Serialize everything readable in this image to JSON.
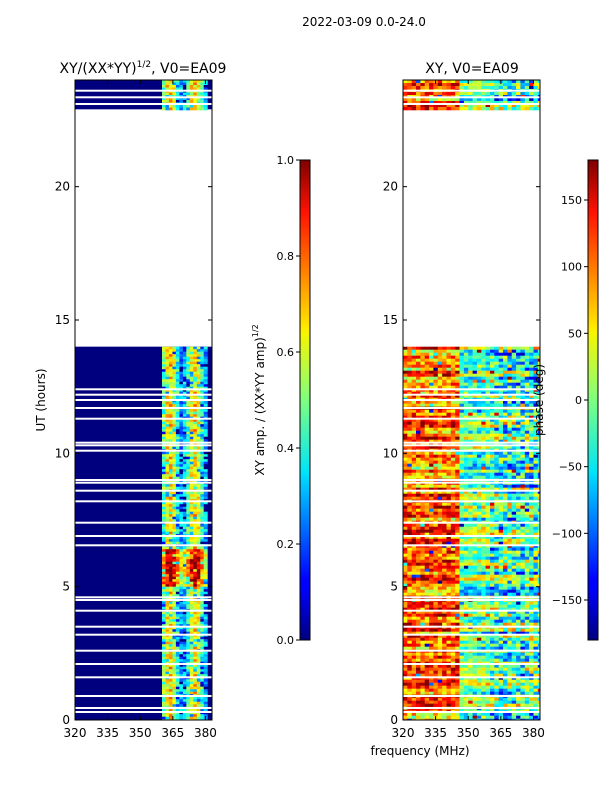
{
  "figure_title": "2022-03-09 0.0-24.0",
  "shared_xlabel": "frequency (MHz)",
  "colors": {
    "background_fill": "#00007f",
    "frame": "#000000",
    "gap": "#ffffff"
  },
  "chart_data": [
    {
      "type": "heatmap",
      "name": "amplitude",
      "title": "XY/(XX*YY)",
      "title_superscript": "1/2",
      "title_suffix": ", V0=EA09",
      "xlabel": "",
      "ylabel": "UT (hours)",
      "xlim": [
        320,
        383
      ],
      "ylim": [
        0,
        24
      ],
      "xticks": [
        320,
        335,
        350,
        365,
        380
      ],
      "yticks": [
        0,
        5,
        10,
        15,
        20
      ],
      "data_bands_hours": [
        [
          0,
          14
        ],
        [
          22.9,
          24
        ]
      ],
      "empty_band_hours": [
        14,
        22.9
      ],
      "active_channel_range_mhz": [
        360,
        380
      ],
      "colorbar": {
        "label": "XY amp. / (XX*YY amp)",
        "label_superscript": "1/2",
        "min": 0.0,
        "max": 1.0,
        "ticks": [
          "0.0",
          "0.2",
          "0.4",
          "0.6",
          "0.8",
          "1.0"
        ]
      }
    },
    {
      "type": "heatmap",
      "name": "phase",
      "title": "XY, V0=EA09",
      "xlabel": "frequency (MHz)",
      "ylabel": "",
      "xlim": [
        320,
        383
      ],
      "ylim": [
        0,
        24
      ],
      "xticks": [
        320,
        335,
        350,
        365,
        380
      ],
      "yticks": [
        0,
        5,
        10,
        15,
        20
      ],
      "data_bands_hours": [
        [
          0,
          14
        ],
        [
          22.9,
          24
        ]
      ],
      "empty_band_hours": [
        14,
        22.9
      ],
      "colorbar": {
        "label": "phase (deg)",
        "min": -180,
        "max": 180,
        "ticks": [
          "−150",
          "−100",
          "−50",
          "0",
          "50",
          "100",
          "150"
        ]
      }
    }
  ]
}
